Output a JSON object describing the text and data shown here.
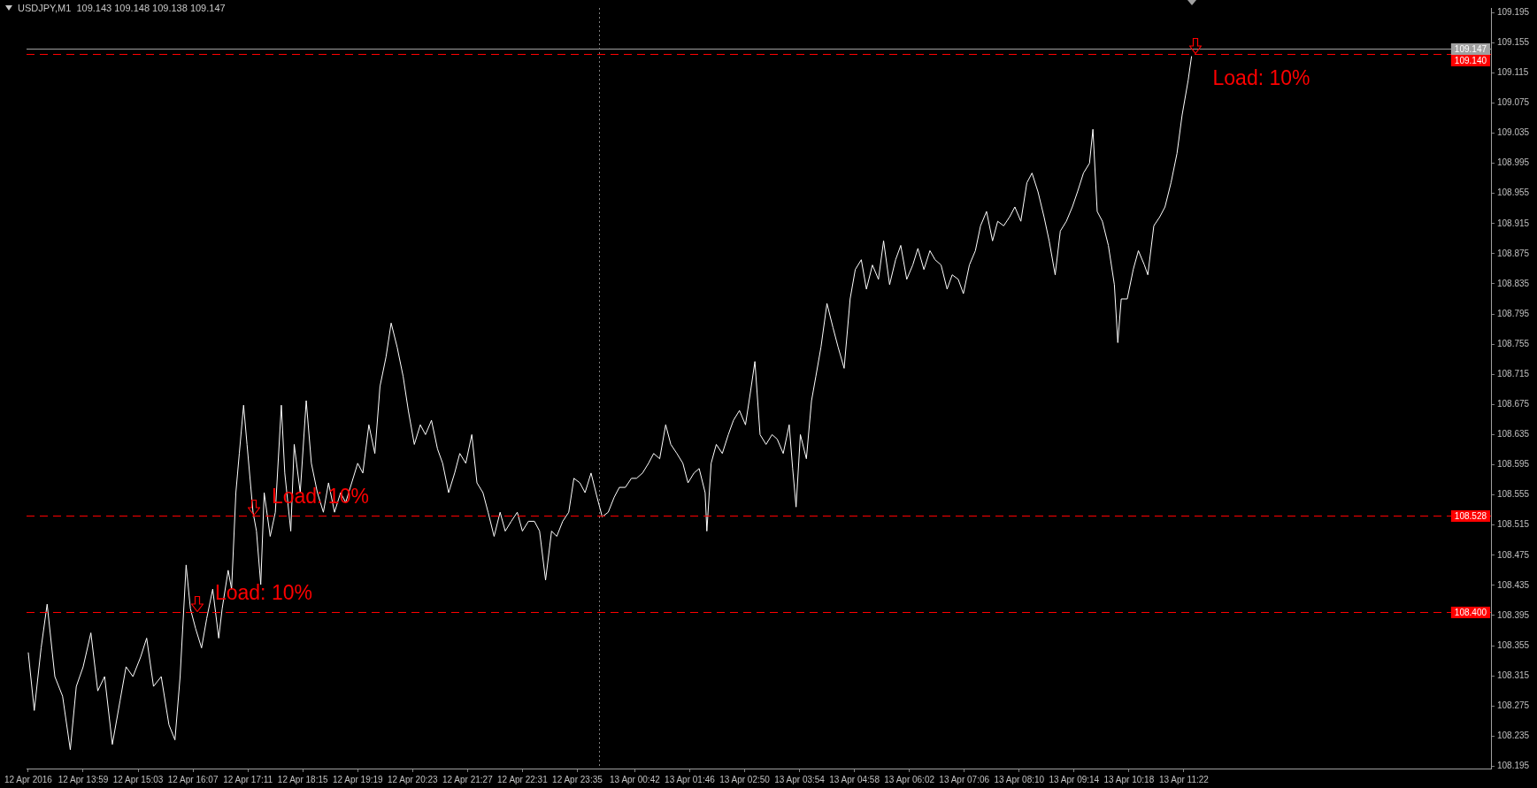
{
  "chart_data": {
    "type": "line",
    "title": "USDJPY,M1  109.143 109.148 109.138 109.147",
    "x": [
      "2016-04-12T12:55",
      "2016-04-12T13:02",
      "2016-04-12T13:10",
      "2016-04-12T13:17",
      "2016-04-12T13:26",
      "2016-04-12T13:35",
      "2016-04-12T13:44",
      "2016-04-12T13:51",
      "2016-04-12T13:59",
      "2016-04-12T14:08",
      "2016-04-12T14:16",
      "2016-04-12T14:24",
      "2016-04-12T14:33",
      "2016-04-12T14:42",
      "2016-04-12T14:49",
      "2016-04-12T14:57",
      "2016-04-12T15:06",
      "2016-04-12T15:13",
      "2016-04-12T15:21",
      "2016-04-12T15:30",
      "2016-04-12T15:39",
      "2016-04-12T15:46",
      "2016-04-12T15:52",
      "2016-04-12T15:59",
      "2016-04-12T16:04",
      "2016-04-12T16:10",
      "2016-04-12T16:17",
      "2016-04-12T16:23",
      "2016-04-12T16:30",
      "2016-04-12T16:37",
      "2016-04-12T16:41",
      "2016-04-12T16:48",
      "2016-04-12T16:52",
      "2016-04-12T16:57",
      "2016-04-12T17:01",
      "2016-04-12T17:06",
      "2016-04-12T17:10",
      "2016-04-12T17:17",
      "2016-04-12T17:21",
      "2016-04-12T17:26",
      "2016-04-12T17:30",
      "2016-04-12T17:37",
      "2016-04-12T17:43",
      "2016-04-12T17:50",
      "2016-04-12T17:54",
      "2016-04-12T18:01",
      "2016-04-12T18:05",
      "2016-04-12T18:12",
      "2016-04-12T18:19",
      "2016-04-12T18:25",
      "2016-04-12T18:32",
      "2016-04-12T18:39",
      "2016-04-12T18:45",
      "2016-04-12T18:52",
      "2016-04-12T18:59",
      "2016-04-12T19:05",
      "2016-04-12T19:12",
      "2016-04-12T19:19",
      "2016-04-12T19:25",
      "2016-04-12T19:32",
      "2016-04-12T19:39",
      "2016-04-12T19:45",
      "2016-04-12T19:52",
      "2016-04-12T19:58",
      "2016-04-12T20:05",
      "2016-04-12T20:12",
      "2016-04-12T20:18",
      "2016-04-12T20:25",
      "2016-04-12T20:32",
      "2016-04-12T20:38",
      "2016-04-12T20:45",
      "2016-04-12T20:52",
      "2016-04-12T20:58",
      "2016-04-12T21:05",
      "2016-04-12T21:12",
      "2016-04-12T21:18",
      "2016-04-12T21:25",
      "2016-04-12T21:32",
      "2016-04-12T21:38",
      "2016-04-12T21:45",
      "2016-04-12T21:51",
      "2016-04-12T21:58",
      "2016-04-12T22:05",
      "2016-04-12T22:11",
      "2016-04-12T22:18",
      "2016-04-12T22:25",
      "2016-04-12T22:31",
      "2016-04-12T22:38",
      "2016-04-12T22:45",
      "2016-04-12T22:51",
      "2016-04-12T22:58",
      "2016-04-12T23:05",
      "2016-04-12T23:11",
      "2016-04-12T23:18",
      "2016-04-12T23:25",
      "2016-04-12T23:31",
      "2016-04-12T23:38",
      "2016-04-12T23:44",
      "2016-04-12T23:51",
      "2016-04-12T23:58",
      "2016-04-13T00:04",
      "2016-04-13T00:11",
      "2016-04-13T00:18",
      "2016-04-13T00:24",
      "2016-04-13T00:31",
      "2016-04-13T00:38",
      "2016-04-13T00:44",
      "2016-04-13T00:51",
      "2016-04-13T00:58",
      "2016-04-13T01:04",
      "2016-04-13T01:11",
      "2016-04-13T01:18",
      "2016-04-13T01:24",
      "2016-04-13T01:31",
      "2016-04-13T01:38",
      "2016-04-13T01:44",
      "2016-04-13T01:51",
      "2016-04-13T01:57",
      "2016-04-13T02:04",
      "2016-04-13T02:06",
      "2016-04-13T02:11",
      "2016-04-13T02:17",
      "2016-04-13T02:24",
      "2016-04-13T02:31",
      "2016-04-13T02:37",
      "2016-04-13T02:44",
      "2016-04-13T02:51",
      "2016-04-13T02:57",
      "2016-04-13T03:02",
      "2016-04-13T03:08",
      "2016-04-13T03:15",
      "2016-04-13T03:22",
      "2016-04-13T03:28",
      "2016-04-13T03:35",
      "2016-04-13T03:42",
      "2016-04-13T03:46",
      "2016-04-13T03:50",
      "2016-04-13T03:55",
      "2016-04-13T04:02",
      "2016-04-13T04:08",
      "2016-04-13T04:13",
      "2016-04-13T04:19",
      "2016-04-13T04:26",
      "2016-04-13T04:33",
      "2016-04-13T04:39",
      "2016-04-13T04:46",
      "2016-04-13T04:53",
      "2016-04-13T04:59",
      "2016-04-13T05:06",
      "2016-04-13T05:12",
      "2016-04-13T05:19",
      "2016-04-13T05:26",
      "2016-04-13T05:32",
      "2016-04-13T05:39",
      "2016-04-13T05:46",
      "2016-04-13T05:52",
      "2016-04-13T05:59",
      "2016-04-13T06:06",
      "2016-04-13T06:12",
      "2016-04-13T06:19",
      "2016-04-13T06:26",
      "2016-04-13T06:32",
      "2016-04-13T06:39",
      "2016-04-13T06:46",
      "2016-04-13T06:52",
      "2016-04-13T06:59",
      "2016-04-13T07:05",
      "2016-04-13T07:12",
      "2016-04-13T07:19",
      "2016-04-13T07:25",
      "2016-04-13T07:32",
      "2016-04-13T07:39",
      "2016-04-13T07:45",
      "2016-04-13T07:52",
      "2016-04-13T07:59",
      "2016-04-13T08:05",
      "2016-04-13T08:12",
      "2016-04-13T08:19",
      "2016-04-13T08:25",
      "2016-04-13T08:32",
      "2016-04-13T08:39",
      "2016-04-13T08:45",
      "2016-04-13T08:52",
      "2016-04-13T08:58",
      "2016-04-13T09:05",
      "2016-04-13T09:12",
      "2016-04-13T09:18",
      "2016-04-13T09:25",
      "2016-04-13T09:32",
      "2016-04-13T09:36",
      "2016-04-13T09:41",
      "2016-04-13T09:47",
      "2016-04-13T09:54",
      "2016-04-13T10:01",
      "2016-04-13T10:05",
      "2016-04-13T10:09",
      "2016-04-13T10:16",
      "2016-04-13T10:23",
      "2016-04-13T10:29",
      "2016-04-13T10:36",
      "2016-04-13T10:40",
      "2016-04-13T10:47",
      "2016-04-13T10:54",
      "2016-04-13T11:00",
      "2016-04-13T11:07",
      "2016-04-13T11:14",
      "2016-04-13T11:20",
      "2016-04-13T11:27",
      "2016-04-13T11:31"
    ],
    "series": [
      {
        "color": "#ffffff",
        "values": [
          108.346,
          108.269,
          108.352,
          108.41,
          108.314,
          108.288,
          108.217,
          108.301,
          108.327,
          108.372,
          108.295,
          108.314,
          108.224,
          108.282,
          108.327,
          108.314,
          108.34,
          108.365,
          108.301,
          108.314,
          108.25,
          108.23,
          108.314,
          108.462,
          108.404,
          108.378,
          108.352,
          108.391,
          108.43,
          108.365,
          108.404,
          108.455,
          108.43,
          108.558,
          108.61,
          108.674,
          108.622,
          108.532,
          108.507,
          108.436,
          108.558,
          108.5,
          108.532,
          108.674,
          108.584,
          108.507,
          108.622,
          108.558,
          108.68,
          108.597,
          108.558,
          108.532,
          108.571,
          108.532,
          108.558,
          108.545,
          108.571,
          108.597,
          108.584,
          108.648,
          108.61,
          108.699,
          108.738,
          108.783,
          108.751,
          108.712,
          108.667,
          108.622,
          108.648,
          108.635,
          108.654,
          108.616,
          108.597,
          108.558,
          108.584,
          108.61,
          108.597,
          108.635,
          108.571,
          108.558,
          108.532,
          108.5,
          108.532,
          108.507,
          108.52,
          108.532,
          108.507,
          108.52,
          108.52,
          108.507,
          108.442,
          108.507,
          108.5,
          108.52,
          108.532,
          108.577,
          108.571,
          108.558,
          108.584,
          108.552,
          108.526,
          108.532,
          108.552,
          108.565,
          108.565,
          108.577,
          108.577,
          108.584,
          108.597,
          108.61,
          108.603,
          108.648,
          108.622,
          108.61,
          108.597,
          108.571,
          108.584,
          108.59,
          108.558,
          108.507,
          108.597,
          108.622,
          108.61,
          108.635,
          108.654,
          108.667,
          108.648,
          108.693,
          108.732,
          108.635,
          108.622,
          108.635,
          108.629,
          108.61,
          108.648,
          108.59,
          108.539,
          108.635,
          108.603,
          108.68,
          108.712,
          108.751,
          108.809,
          108.777,
          108.751,
          108.723,
          108.815,
          108.854,
          108.867,
          108.828,
          108.86,
          108.841,
          108.892,
          108.834,
          108.867,
          108.886,
          108.841,
          108.86,
          108.882,
          108.854,
          108.879,
          108.867,
          108.86,
          108.828,
          108.847,
          108.841,
          108.822,
          108.86,
          108.879,
          108.912,
          108.931,
          108.892,
          108.918,
          108.912,
          108.924,
          108.937,
          108.918,
          108.969,
          108.982,
          108.957,
          108.924,
          108.892,
          108.847,
          108.905,
          108.918,
          108.937,
          108.957,
          108.982,
          108.995,
          109.04,
          108.931,
          108.918,
          108.886,
          108.834,
          108.757,
          108.815,
          108.815,
          108.854,
          108.879,
          108.86,
          108.847,
          108.912,
          108.924,
          108.937,
          108.969,
          109.008,
          109.059,
          109.105,
          109.137
        ]
      }
    ],
    "xlim": [
      "2016-04-12T12:53",
      "2016-04-13T17:20"
    ],
    "xticks": [
      {
        "value": "2016-04-12T12:55",
        "label": "12 Apr 2016"
      },
      {
        "value": "2016-04-12T13:59",
        "label": "12 Apr 13:59"
      },
      {
        "value": "2016-04-12T15:03",
        "label": "12 Apr 15:03"
      },
      {
        "value": "2016-04-12T16:07",
        "label": "12 Apr 16:07"
      },
      {
        "value": "2016-04-12T17:11",
        "label": "12 Apr 17:11"
      },
      {
        "value": "2016-04-12T18:15",
        "label": "12 Apr 18:15"
      },
      {
        "value": "2016-04-12T19:19",
        "label": "12 Apr 19:19"
      },
      {
        "value": "2016-04-12T20:23",
        "label": "12 Apr 20:23"
      },
      {
        "value": "2016-04-12T21:27",
        "label": "12 Apr 21:27"
      },
      {
        "value": "2016-04-12T22:31",
        "label": "12 Apr 22:31"
      },
      {
        "value": "2016-04-12T23:35",
        "label": "12 Apr 23:35"
      },
      {
        "value": "2016-04-13T00:42",
        "label": "13 Apr 00:42"
      },
      {
        "value": "2016-04-13T01:46",
        "label": "13 Apr 01:46"
      },
      {
        "value": "2016-04-13T02:50",
        "label": "13 Apr 02:50"
      },
      {
        "value": "2016-04-13T03:54",
        "label": "13 Apr 03:54"
      },
      {
        "value": "2016-04-13T04:58",
        "label": "13 Apr 04:58"
      },
      {
        "value": "2016-04-13T06:02",
        "label": "13 Apr 06:02"
      },
      {
        "value": "2016-04-13T07:06",
        "label": "13 Apr 07:06"
      },
      {
        "value": "2016-04-13T08:10",
        "label": "13 Apr 08:10"
      },
      {
        "value": "2016-04-13T09:14",
        "label": "13 Apr 09:14"
      },
      {
        "value": "2016-04-13T10:18",
        "label": "13 Apr 10:18"
      },
      {
        "value": "2016-04-13T11:22",
        "label": "13 Apr 11:22"
      }
    ],
    "ylim": [
      108.192,
      109.201
    ],
    "yticks": [
      108.195,
      108.235,
      108.275,
      108.315,
      108.355,
      108.395,
      108.435,
      108.475,
      108.515,
      108.555,
      108.595,
      108.635,
      108.675,
      108.715,
      108.755,
      108.795,
      108.835,
      108.875,
      108.915,
      108.955,
      108.995,
      109.035,
      109.075,
      109.115,
      109.155,
      109.195
    ],
    "ref_lines": [
      {
        "axis": "y",
        "value": 109.147,
        "label": "109.147",
        "color": "#a0a0a0",
        "line_style": "solid"
      },
      {
        "axis": "y",
        "value": 109.14,
        "label": "109.140",
        "color": "#ff0000",
        "line_style": "dashed"
      },
      {
        "axis": "y",
        "value": 108.528,
        "label": "108.528",
        "color": "#ff0000",
        "line_style": "dashed"
      },
      {
        "axis": "y",
        "value": 108.4,
        "label": "108.400",
        "color": "#ff0000",
        "line_style": "dashed"
      },
      {
        "axis": "x",
        "value": "2016-04-13T00:00",
        "label": null,
        "color": "#808080",
        "line_style": "dotted"
      }
    ],
    "annotations": [
      {
        "text": "Load: 10%",
        "x": "2016-04-12T16:12",
        "y": 108.4
      },
      {
        "text": "Load: 10%",
        "x": "2016-04-12T17:18",
        "y": 108.528
      },
      {
        "text": "Load: 10%",
        "x": "2016-04-13T11:35",
        "y": 109.14
      }
    ],
    "grid": false,
    "legend": false,
    "marker": "none",
    "line_style": "solid"
  }
}
